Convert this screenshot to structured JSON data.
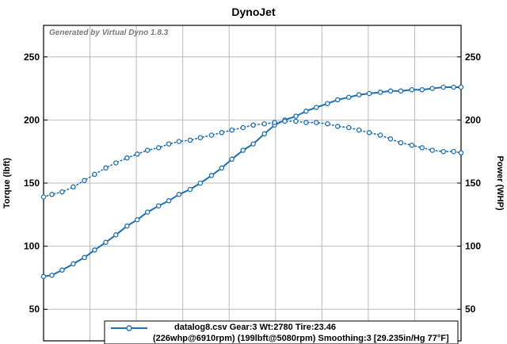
{
  "chart_data": {
    "type": "line",
    "title": "DynoJet",
    "watermark": "Generated by Virtual Dyno 1.8.3",
    "ylabel_left": "Torque (lbft)",
    "ylabel_right": "Power (WHP)",
    "ylim": [
      25,
      275
    ],
    "yticks": [
      50,
      100,
      150,
      200,
      250
    ],
    "xlim": [
      2500,
      7000
    ],
    "grid": true,
    "legend": {
      "placement": "bottom-right",
      "line1": "datalog8.csv Gear:3 Wt:2780 Tire:23.46",
      "line2": "(226whp@6910rpm) (199lbft@5080rpm) Smoothing:3 [29.235in/Hg 77°F]"
    },
    "colors": {
      "series": "#1f6fb4",
      "grid": "#bbbbbb"
    },
    "series": [
      {
        "axis": "right",
        "style": "solid",
        "marker": "circle",
        "x": [
          2500,
          2590,
          2700,
          2820,
          2940,
          3050,
          3170,
          3280,
          3400,
          3510,
          3620,
          3740,
          3850,
          3960,
          4080,
          4190,
          4310,
          4420,
          4530,
          4650,
          4760,
          4880,
          4990,
          5100,
          5220,
          5330,
          5440,
          5560,
          5670,
          5790,
          5900,
          6010,
          6130,
          6240,
          6350,
          6470,
          6580,
          6690,
          6810,
          6920,
          7000
        ],
        "values": [
          76,
          77,
          81,
          86,
          91,
          97,
          103,
          109,
          116,
          121,
          127,
          132,
          136,
          141,
          145,
          150,
          156,
          162,
          169,
          176,
          181,
          189,
          196,
          200,
          203,
          207,
          210,
          213,
          216,
          218,
          220,
          221,
          222,
          223,
          223,
          224,
          224,
          225,
          226,
          226,
          226
        ]
      },
      {
        "axis": "left",
        "style": "dotted",
        "marker": "circle",
        "x": [
          2500,
          2590,
          2700,
          2820,
          2940,
          3050,
          3170,
          3280,
          3400,
          3510,
          3620,
          3740,
          3850,
          3960,
          4080,
          4190,
          4310,
          4420,
          4530,
          4650,
          4760,
          4880,
          4990,
          5100,
          5220,
          5330,
          5440,
          5560,
          5670,
          5790,
          5900,
          6010,
          6130,
          6240,
          6350,
          6470,
          6580,
          6690,
          6810,
          6920,
          7000
        ],
        "values": [
          139,
          141,
          143,
          147,
          152,
          157,
          162,
          166,
          170,
          173,
          176,
          178,
          181,
          183,
          184,
          186,
          188,
          190,
          192,
          194,
          196,
          197,
          198,
          199,
          199,
          198,
          198,
          197,
          195,
          194,
          192,
          190,
          188,
          185,
          182,
          180,
          178,
          176,
          175,
          175,
          174
        ]
      }
    ]
  }
}
